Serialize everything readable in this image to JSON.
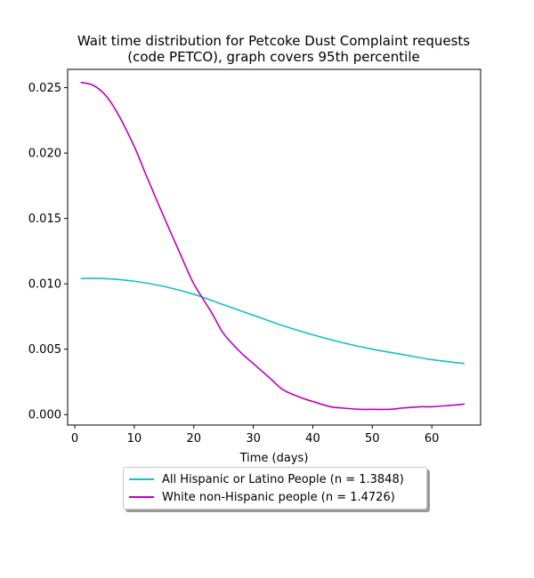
{
  "chart_data": {
    "type": "line",
    "title": "Wait time distribution  for Petcoke Dust Complaint  requests (code PETCO), graph covers 95th percentile",
    "title_lines": [
      "Wait time distribution  for Petcoke Dust Complaint  requests",
      "(code PETCO), graph covers 95th percentile"
    ],
    "xlabel": "Time (days)",
    "ylabel": "",
    "xlim": [
      -1.2,
      68.2
    ],
    "ylim": [
      -0.0008,
      0.0264
    ],
    "xticks": [
      0,
      10,
      20,
      30,
      40,
      50,
      60
    ],
    "yticks": [
      0.0,
      0.005,
      0.01,
      0.015,
      0.02,
      0.025
    ],
    "ytick_labels": [
      "0.000",
      "0.005",
      "0.010",
      "0.015",
      "0.020",
      "0.025"
    ],
    "grid": false,
    "legend_position": "below-center",
    "series": [
      {
        "name": "All Hispanic or Latino People (n = 1.3848)",
        "color": "#17becf",
        "x": [
          1,
          5,
          10,
          15,
          20,
          25,
          30,
          35,
          40,
          45,
          50,
          55,
          60,
          65.5
        ],
        "y": [
          0.0104,
          0.0104,
          0.0102,
          0.0098,
          0.0092,
          0.0084,
          0.0076,
          0.0068,
          0.0061,
          0.0055,
          0.005,
          0.0046,
          0.0042,
          0.0039
        ]
      },
      {
        "name": "White non-Hispanic people (n = 1.4726)",
        "color": "#bf00bf",
        "x": [
          1,
          3,
          5,
          7,
          10,
          12,
          15,
          18,
          20,
          23,
          25,
          28,
          30,
          33,
          35,
          38,
          40,
          43,
          45,
          48,
          50,
          53,
          55,
          58,
          60,
          63,
          65.5
        ],
        "y": [
          0.0254,
          0.0252,
          0.0245,
          0.0232,
          0.0205,
          0.0183,
          0.0151,
          0.012,
          0.01,
          0.0078,
          0.0062,
          0.0047,
          0.0039,
          0.0027,
          0.0019,
          0.0013,
          0.001,
          0.0006,
          0.0005,
          0.0004,
          0.0004,
          0.0004,
          0.0005,
          0.0006,
          0.0006,
          0.0007,
          0.0008
        ]
      }
    ]
  }
}
